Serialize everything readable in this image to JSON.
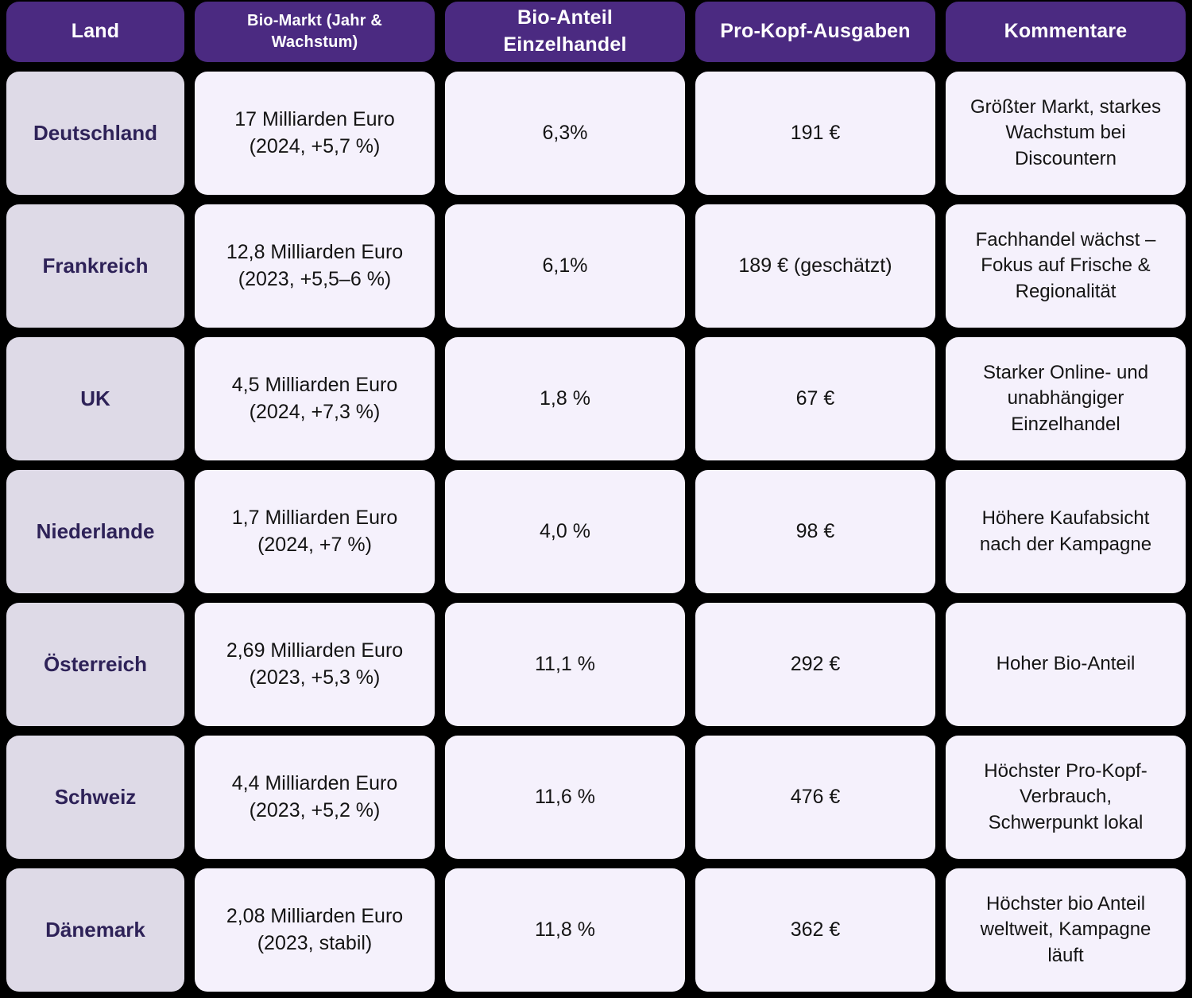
{
  "colors": {
    "page_background": "#000000",
    "header_bg": "#4B2A81",
    "header_text": "#FFFFFF",
    "country_cell_bg": "#DEDAE7",
    "country_cell_text": "#2E2258",
    "data_cell_bg": "#F5F1FC",
    "data_cell_text": "#141414"
  },
  "chart_data": {
    "type": "table",
    "columns": [
      "Land",
      "Bio-Markt (Jahr & Wachstum)",
      "Bio-Anteil Einzelhandel",
      "Pro-Kopf-Ausgaben",
      "Kommentare"
    ],
    "rows": [
      {
        "land": "Deutschland",
        "bio_markt": "17 Milliarden Euro\n(2024, +5,7 %)",
        "bio_anteil": "6,3%",
        "pro_kopf": "191 €",
        "kommentar": "Größter Markt, starkes\nWachstum bei\nDiscountern"
      },
      {
        "land": "Frankreich",
        "bio_markt": "12,8 Milliarden Euro\n(2023, +5,5–6 %)",
        "bio_anteil": "6,1%",
        "pro_kopf": "189 € (geschätzt)",
        "kommentar": "Fachhandel wächst –\nFokus auf Frische &\nRegionalität"
      },
      {
        "land": "UK",
        "bio_markt": "4,5 Milliarden Euro\n(2024, +7,3 %)",
        "bio_anteil": "1,8 %",
        "pro_kopf": "67 €",
        "kommentar": "Starker Online- und\nunabhängiger\nEinzelhandel"
      },
      {
        "land": "Niederlande",
        "bio_markt": "1,7 Milliarden Euro\n(2024, +7 %)",
        "bio_anteil": "4,0 %",
        "pro_kopf": "98 €",
        "kommentar": "Höhere Kaufabsicht\nnach der Kampagne"
      },
      {
        "land": "Österreich",
        "bio_markt": "2,69 Milliarden Euro\n(2023, +5,3 %)",
        "bio_anteil": "11,1 %",
        "pro_kopf": "292 €",
        "kommentar": "Hoher Bio-Anteil"
      },
      {
        "land": "Schweiz",
        "bio_markt": "4,4 Milliarden Euro\n(2023, +5,2 %)",
        "bio_anteil": "11,6 %",
        "pro_kopf": "476 €",
        "kommentar": "Höchster Pro-Kopf-\nVerbrauch,\nSchwerpunkt lokal"
      },
      {
        "land": "Dänemark",
        "bio_markt": "2,08 Milliarden Euro\n(2023, stabil)",
        "bio_anteil": "11,8 %",
        "pro_kopf": "362 €",
        "kommentar": "Höchster bio Anteil\nweltweit, Kampagne\nläuft"
      }
    ]
  }
}
